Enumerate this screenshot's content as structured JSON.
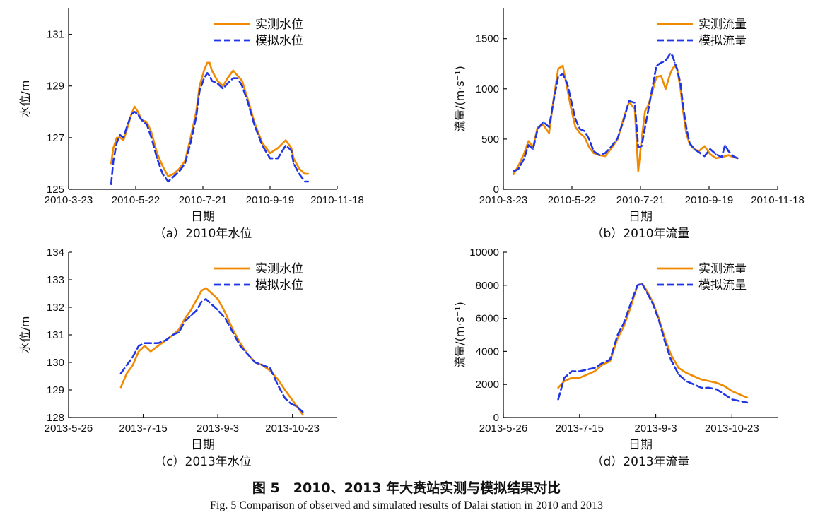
{
  "figure": {
    "caption_cn": "图 5　2010、2013 年大赉站实测与模拟结果对比",
    "caption_en": "Fig. 5   Comparison of observed and simulated results of Dalai station in 2010 and 2013"
  },
  "colors": {
    "observed": "#f08a00",
    "simulated": "#1f35e6",
    "axis": "#111111"
  },
  "chart_data": [
    {
      "id": "a",
      "type": "line",
      "title": "（a）2010年水位",
      "xlabel": "日期",
      "ylabel": "水位/m",
      "xlim": [
        "2010-03-23",
        "2010-11-18"
      ],
      "xticks": [
        "2010-3-23",
        "2010-5-22",
        "2010-7-21",
        "2010-9-19",
        "2010-11-18"
      ],
      "ylim": [
        125,
        132
      ],
      "yticks": [
        125,
        127,
        129,
        131
      ],
      "legend_position": "top-right",
      "series": [
        {
          "name": "实测水位",
          "style": "solid",
          "color": "#f08a00",
          "x": [
            "2010-04-30",
            "2010-05-02",
            "2010-05-05",
            "2010-05-08",
            "2010-05-11",
            "2010-05-14",
            "2010-05-18",
            "2010-05-21",
            "2010-05-24",
            "2010-05-27",
            "2010-06-01",
            "2010-06-05",
            "2010-06-10",
            "2010-06-15",
            "2010-06-20",
            "2010-06-25",
            "2010-06-30",
            "2010-07-05",
            "2010-07-10",
            "2010-07-15",
            "2010-07-18",
            "2010-07-22",
            "2010-07-25",
            "2010-07-27",
            "2010-07-29",
            "2010-08-03",
            "2010-08-08",
            "2010-08-12",
            "2010-08-17",
            "2010-08-21",
            "2010-08-25",
            "2010-08-30",
            "2010-09-05",
            "2010-09-12",
            "2010-09-19",
            "2010-09-26",
            "2010-10-03",
            "2010-10-08",
            "2010-10-10",
            "2010-10-15",
            "2010-10-20",
            "2010-10-23"
          ],
          "y": [
            126.0,
            126.6,
            127.0,
            127.0,
            126.9,
            127.3,
            127.9,
            128.2,
            128.0,
            127.7,
            127.6,
            127.2,
            126.4,
            125.9,
            125.5,
            125.6,
            125.8,
            126.1,
            127.0,
            128.0,
            129.0,
            129.6,
            129.9,
            129.9,
            129.6,
            129.2,
            129.0,
            129.3,
            129.6,
            129.4,
            129.2,
            128.5,
            127.6,
            126.8,
            126.4,
            126.6,
            126.9,
            126.6,
            126.2,
            125.8,
            125.6,
            125.6
          ]
        },
        {
          "name": "模拟水位",
          "style": "dashed",
          "color": "#1f35e6",
          "x": [
            "2010-04-30",
            "2010-05-02",
            "2010-05-05",
            "2010-05-08",
            "2010-05-11",
            "2010-05-14",
            "2010-05-18",
            "2010-05-21",
            "2010-05-24",
            "2010-05-27",
            "2010-06-01",
            "2010-06-05",
            "2010-06-10",
            "2010-06-15",
            "2010-06-20",
            "2010-06-25",
            "2010-06-30",
            "2010-07-05",
            "2010-07-10",
            "2010-07-15",
            "2010-07-18",
            "2010-07-22",
            "2010-07-25",
            "2010-07-27",
            "2010-07-29",
            "2010-08-03",
            "2010-08-08",
            "2010-08-12",
            "2010-08-17",
            "2010-08-21",
            "2010-08-25",
            "2010-08-30",
            "2010-09-05",
            "2010-09-12",
            "2010-09-19",
            "2010-09-26",
            "2010-10-03",
            "2010-10-08",
            "2010-10-10",
            "2010-10-15",
            "2010-10-20",
            "2010-10-23"
          ],
          "y": [
            125.2,
            126.1,
            126.8,
            127.1,
            127.0,
            127.4,
            127.9,
            128.0,
            127.9,
            127.7,
            127.5,
            127.0,
            126.2,
            125.6,
            125.3,
            125.5,
            125.7,
            126.0,
            126.8,
            127.8,
            128.8,
            129.3,
            129.5,
            129.4,
            129.2,
            129.1,
            128.9,
            129.1,
            129.3,
            129.3,
            129.0,
            128.4,
            127.5,
            126.7,
            126.2,
            126.2,
            126.7,
            126.5,
            126.0,
            125.6,
            125.3,
            125.3
          ]
        }
      ]
    },
    {
      "id": "b",
      "type": "line",
      "title": "（b）2010年流量",
      "xlabel": "日期",
      "ylabel": "流量/(m·s⁻¹)",
      "xlim": [
        "2010-03-23",
        "2010-11-18"
      ],
      "xticks": [
        "2010-3-23",
        "2010-5-22",
        "2010-7-21",
        "2010-9-19",
        "2010-11-18"
      ],
      "ylim": [
        0,
        1800
      ],
      "yticks": [
        0,
        500,
        1000,
        1500
      ],
      "legend_position": "top-right",
      "series": [
        {
          "name": "实测流量",
          "style": "solid",
          "color": "#f08a00",
          "x": [
            "2010-04-01",
            "2010-04-05",
            "2010-04-10",
            "2010-04-14",
            "2010-04-18",
            "2010-04-22",
            "2010-04-27",
            "2010-05-02",
            "2010-05-06",
            "2010-05-10",
            "2010-05-14",
            "2010-05-18",
            "2010-05-21",
            "2010-05-25",
            "2010-05-29",
            "2010-06-02",
            "2010-06-06",
            "2010-06-10",
            "2010-06-15",
            "2010-06-20",
            "2010-06-25",
            "2010-07-01",
            "2010-07-06",
            "2010-07-11",
            "2010-07-16",
            "2010-07-19",
            "2010-07-22",
            "2010-07-25",
            "2010-07-28",
            "2010-08-01",
            "2010-08-04",
            "2010-08-08",
            "2010-08-12",
            "2010-08-16",
            "2010-08-18",
            "2010-08-20",
            "2010-08-22",
            "2010-08-25",
            "2010-08-27",
            "2010-08-30",
            "2010-09-02",
            "2010-09-06",
            "2010-09-10",
            "2010-09-15",
            "2010-09-20",
            "2010-09-25",
            "2010-09-30",
            "2010-10-03",
            "2010-10-06",
            "2010-10-10",
            "2010-10-14"
          ],
          "y": [
            150,
            230,
            350,
            480,
            420,
            620,
            640,
            560,
            900,
            1200,
            1230,
            1000,
            820,
            620,
            560,
            520,
            420,
            360,
            340,
            330,
            400,
            500,
            700,
            870,
            800,
            180,
            500,
            780,
            840,
            1000,
            1120,
            1130,
            1000,
            1150,
            1200,
            1230,
            1200,
            1000,
            800,
            560,
            450,
            400,
            380,
            430,
            350,
            310,
            320,
            330,
            340,
            320,
            310
          ]
        },
        {
          "name": "模拟流量",
          "style": "dashed",
          "color": "#1f35e6",
          "x": [
            "2010-04-01",
            "2010-04-05",
            "2010-04-10",
            "2010-04-14",
            "2010-04-18",
            "2010-04-22",
            "2010-04-27",
            "2010-05-02",
            "2010-05-06",
            "2010-05-10",
            "2010-05-14",
            "2010-05-18",
            "2010-05-21",
            "2010-05-25",
            "2010-05-29",
            "2010-06-02",
            "2010-06-06",
            "2010-06-10",
            "2010-06-15",
            "2010-06-20",
            "2010-06-25",
            "2010-07-01",
            "2010-07-06",
            "2010-07-11",
            "2010-07-16",
            "2010-07-19",
            "2010-07-22",
            "2010-07-25",
            "2010-07-28",
            "2010-08-01",
            "2010-08-04",
            "2010-08-08",
            "2010-08-12",
            "2010-08-16",
            "2010-08-18",
            "2010-08-20",
            "2010-08-22",
            "2010-08-25",
            "2010-08-27",
            "2010-08-30",
            "2010-09-02",
            "2010-09-06",
            "2010-09-10",
            "2010-09-15",
            "2010-09-20",
            "2010-09-25",
            "2010-09-30",
            "2010-10-03",
            "2010-10-06",
            "2010-10-10",
            "2010-10-14"
          ],
          "y": [
            180,
            200,
            300,
            440,
            400,
            600,
            670,
            620,
            880,
            1120,
            1150,
            1050,
            900,
            700,
            600,
            580,
            500,
            380,
            340,
            360,
            420,
            510,
            680,
            880,
            860,
            420,
            430,
            620,
            800,
            1050,
            1230,
            1260,
            1280,
            1350,
            1330,
            1260,
            1200,
            1050,
            850,
            620,
            460,
            400,
            370,
            330,
            400,
            350,
            320,
            440,
            380,
            330,
            310
          ]
        }
      ]
    },
    {
      "id": "c",
      "type": "line",
      "title": "（c）2013年水位",
      "xlabel": "日期",
      "ylabel": "水位/m",
      "xlim": [
        "2013-05-26",
        "2013-11-22"
      ],
      "xticks": [
        "2013-5-26",
        "2013-7-15",
        "2013-9-3",
        "2013-10-23"
      ],
      "ylim": [
        128,
        134
      ],
      "yticks": [
        128,
        129,
        130,
        131,
        132,
        133,
        134
      ],
      "legend_position": "top-right",
      "series": [
        {
          "name": "实测水位",
          "style": "solid",
          "color": "#f08a00",
          "x": [
            "2013-06-30",
            "2013-07-04",
            "2013-07-08",
            "2013-07-12",
            "2013-07-16",
            "2013-07-20",
            "2013-07-25",
            "2013-07-30",
            "2013-08-04",
            "2013-08-08",
            "2013-08-12",
            "2013-08-16",
            "2013-08-20",
            "2013-08-23",
            "2013-08-26",
            "2013-08-30",
            "2013-09-03",
            "2013-09-08",
            "2013-09-13",
            "2013-09-18",
            "2013-09-23",
            "2013-09-28",
            "2013-10-03",
            "2013-10-08",
            "2013-10-13",
            "2013-10-18",
            "2013-10-22",
            "2013-10-26",
            "2013-10-30"
          ],
          "y": [
            129.1,
            129.6,
            129.9,
            130.4,
            130.6,
            130.4,
            130.6,
            130.8,
            131.0,
            131.2,
            131.6,
            131.9,
            132.3,
            132.6,
            132.7,
            132.5,
            132.3,
            131.8,
            131.2,
            130.7,
            130.3,
            130.0,
            129.9,
            129.7,
            129.4,
            129.0,
            128.7,
            128.4,
            128.1
          ]
        },
        {
          "name": "模拟水位",
          "style": "dashed",
          "color": "#1f35e6",
          "x": [
            "2013-06-30",
            "2013-07-04",
            "2013-07-08",
            "2013-07-12",
            "2013-07-16",
            "2013-07-20",
            "2013-07-25",
            "2013-07-30",
            "2013-08-04",
            "2013-08-08",
            "2013-08-12",
            "2013-08-16",
            "2013-08-20",
            "2013-08-23",
            "2013-08-26",
            "2013-08-30",
            "2013-09-03",
            "2013-09-08",
            "2013-09-13",
            "2013-09-18",
            "2013-09-23",
            "2013-09-28",
            "2013-10-03",
            "2013-10-08",
            "2013-10-13",
            "2013-10-18",
            "2013-10-22",
            "2013-10-26",
            "2013-10-30"
          ],
          "y": [
            129.6,
            129.9,
            130.2,
            130.6,
            130.7,
            130.7,
            130.7,
            130.8,
            131.0,
            131.1,
            131.5,
            131.7,
            131.9,
            132.2,
            132.3,
            132.1,
            131.9,
            131.6,
            131.1,
            130.6,
            130.3,
            130.0,
            129.9,
            129.8,
            129.2,
            128.7,
            128.5,
            128.4,
            128.2
          ]
        }
      ]
    },
    {
      "id": "d",
      "type": "line",
      "title": "（d）2013年流量",
      "xlabel": "日期",
      "ylabel": "流量/(m·s⁻¹)",
      "xlim": [
        "2013-05-26",
        "2013-11-22"
      ],
      "xticks": [
        "2013-5-26",
        "2013-7-15",
        "2013-9-3",
        "2013-10-23"
      ],
      "ylim": [
        0,
        10000
      ],
      "yticks": [
        0,
        2000,
        4000,
        6000,
        8000,
        10000
      ],
      "legend_position": "top-right",
      "series": [
        {
          "name": "实测流量",
          "style": "solid",
          "color": "#f08a00",
          "x": [
            "2013-07-01",
            "2013-07-05",
            "2013-07-10",
            "2013-07-15",
            "2013-07-20",
            "2013-07-25",
            "2013-07-30",
            "2013-08-04",
            "2013-08-09",
            "2013-08-13",
            "2013-08-18",
            "2013-08-22",
            "2013-08-25",
            "2013-08-28",
            "2013-09-01",
            "2013-09-05",
            "2013-09-09",
            "2013-09-13",
            "2013-09-18",
            "2013-09-23",
            "2013-09-28",
            "2013-10-03",
            "2013-10-08",
            "2013-10-13",
            "2013-10-18",
            "2013-10-23",
            "2013-10-28",
            "2013-11-02"
          ],
          "y": [
            1800,
            2200,
            2400,
            2400,
            2600,
            2800,
            3200,
            3400,
            4800,
            5500,
            6800,
            8000,
            8100,
            7700,
            7000,
            6000,
            4800,
            3800,
            3000,
            2700,
            2500,
            2300,
            2200,
            2100,
            1900,
            1600,
            1400,
            1200
          ]
        },
        {
          "name": "模拟流量",
          "style": "dashed",
          "color": "#1f35e6",
          "x": [
            "2013-07-01",
            "2013-07-05",
            "2013-07-10",
            "2013-07-15",
            "2013-07-20",
            "2013-07-25",
            "2013-07-30",
            "2013-08-04",
            "2013-08-09",
            "2013-08-13",
            "2013-08-18",
            "2013-08-22",
            "2013-08-25",
            "2013-08-28",
            "2013-09-01",
            "2013-09-05",
            "2013-09-09",
            "2013-09-13",
            "2013-09-18",
            "2013-09-23",
            "2013-09-28",
            "2013-10-03",
            "2013-10-08",
            "2013-10-13",
            "2013-10-18",
            "2013-10-23",
            "2013-10-28",
            "2013-11-02"
          ],
          "y": [
            1100,
            2400,
            2800,
            2800,
            2900,
            3000,
            3300,
            3500,
            5000,
            5700,
            7000,
            8000,
            8100,
            7600,
            6900,
            5900,
            4600,
            3500,
            2600,
            2200,
            2000,
            1800,
            1800,
            1700,
            1400,
            1100,
            1000,
            900
          ]
        }
      ]
    }
  ]
}
